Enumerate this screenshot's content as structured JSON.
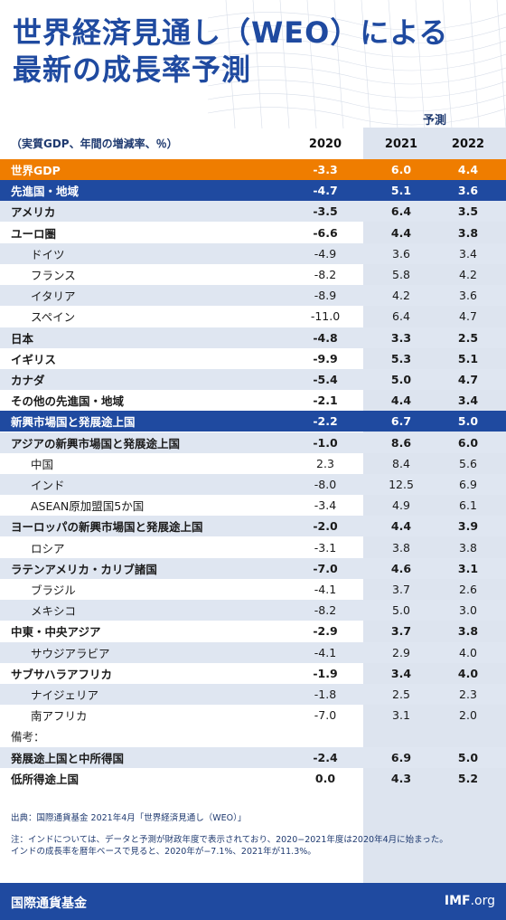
{
  "title": {
    "line1": "世界経済見通し（WEO）による",
    "line2": "最新の成長率予測"
  },
  "forecast_label": "予測",
  "unit_note": "（実質GDP、年間の増減率、％）",
  "columns": [
    "2020",
    "2021",
    "2022"
  ],
  "rows": [
    {
      "label": "世界GDP",
      "v": [
        "-3.3",
        "6.0",
        "4.4"
      ],
      "style": "orange"
    },
    {
      "label": "先進国・地域",
      "v": [
        "-4.7",
        "5.1",
        "3.6"
      ],
      "style": "navy"
    },
    {
      "label": "アメリカ",
      "v": [
        "-3.5",
        "6.4",
        "3.5"
      ],
      "style": "bold-band"
    },
    {
      "label": "ユーロ圏",
      "v": [
        "-6.6",
        "4.4",
        "3.8"
      ],
      "style": "bold"
    },
    {
      "label": "ドイツ",
      "v": [
        "-4.9",
        "3.6",
        "3.4"
      ],
      "style": "indent-band"
    },
    {
      "label": "フランス",
      "v": [
        "-8.2",
        "5.8",
        "4.2"
      ],
      "style": "indent"
    },
    {
      "label": "イタリア",
      "v": [
        "-8.9",
        "4.2",
        "3.6"
      ],
      "style": "indent-band"
    },
    {
      "label": "スペイン",
      "v": [
        "-11.0",
        "6.4",
        "4.7"
      ],
      "style": "indent"
    },
    {
      "label": "日本",
      "v": [
        "-4.8",
        "3.3",
        "2.5"
      ],
      "style": "bold-band"
    },
    {
      "label": "イギリス",
      "v": [
        "-9.9",
        "5.3",
        "5.1"
      ],
      "style": "bold"
    },
    {
      "label": "カナダ",
      "v": [
        "-5.4",
        "5.0",
        "4.7"
      ],
      "style": "bold-band"
    },
    {
      "label": "その他の先進国・地域",
      "v": [
        "-2.1",
        "4.4",
        "3.4"
      ],
      "style": "bold"
    },
    {
      "label": "新興市場国と発展途上国",
      "v": [
        "-2.2",
        "6.7",
        "5.0"
      ],
      "style": "navy"
    },
    {
      "label": "アジアの新興市場国と発展途上国",
      "v": [
        "-1.0",
        "8.6",
        "6.0"
      ],
      "style": "bold-band"
    },
    {
      "label": "中国",
      "v": [
        "2.3",
        "8.4",
        "5.6"
      ],
      "style": "indent"
    },
    {
      "label": "インド",
      "v": [
        "-8.0",
        "12.5",
        "6.9"
      ],
      "style": "indent-band"
    },
    {
      "label": "ASEAN原加盟国5か国",
      "v": [
        "-3.4",
        "4.9",
        "6.1"
      ],
      "style": "indent"
    },
    {
      "label": "ヨーロッパの新興市場国と発展途上国",
      "v": [
        "-2.0",
        "4.4",
        "3.9"
      ],
      "style": "bold-band"
    },
    {
      "label": "ロシア",
      "v": [
        "-3.1",
        "3.8",
        "3.8"
      ],
      "style": "indent"
    },
    {
      "label": "ラテンアメリカ・カリブ諸国",
      "v": [
        "-7.0",
        "4.6",
        "3.1"
      ],
      "style": "bold-band"
    },
    {
      "label": "ブラジル",
      "v": [
        "-4.1",
        "3.7",
        "2.6"
      ],
      "style": "indent"
    },
    {
      "label": "メキシコ",
      "v": [
        "-8.2",
        "5.0",
        "3.0"
      ],
      "style": "indent-band"
    },
    {
      "label": "中東・中央アジア",
      "v": [
        "-2.9",
        "3.7",
        "3.8"
      ],
      "style": "bold"
    },
    {
      "label": "サウジアラビア",
      "v": [
        "-4.1",
        "2.9",
        "4.0"
      ],
      "style": "indent-band"
    },
    {
      "label": "サブサハラアフリカ",
      "v": [
        "-1.9",
        "3.4",
        "4.0"
      ],
      "style": "bold"
    },
    {
      "label": "ナイジェリア",
      "v": [
        "-1.8",
        "2.5",
        "2.3"
      ],
      "style": "indent-band"
    },
    {
      "label": "南アフリカ",
      "v": [
        "-7.0",
        "3.1",
        "2.0"
      ],
      "style": "indent"
    },
    {
      "label": "備考：",
      "v": [
        "",
        "",
        ""
      ],
      "style": "note"
    },
    {
      "label": "発展途上国と中所得国",
      "v": [
        "-2.4",
        "6.9",
        "5.0"
      ],
      "style": "bold-band"
    },
    {
      "label": "低所得途上国",
      "v": [
        "0.0",
        "4.3",
        "5.2"
      ],
      "style": "bold"
    }
  ],
  "source": "出典：国際通貨基金 2021年4月「世界経済見通し（WEO）」",
  "note_line1": "注：インドについては、データと予測が財政年度で表示されており、2020−2021年度は2020年4月に始まった。",
  "note_line2": "インドの成長率を暦年ベースで見ると、2020年が−7.1%、2021年が11.3%。",
  "footer_left": "国際通貨基金",
  "footer_right_bold": "IMF",
  "footer_right_rest": ".org"
}
